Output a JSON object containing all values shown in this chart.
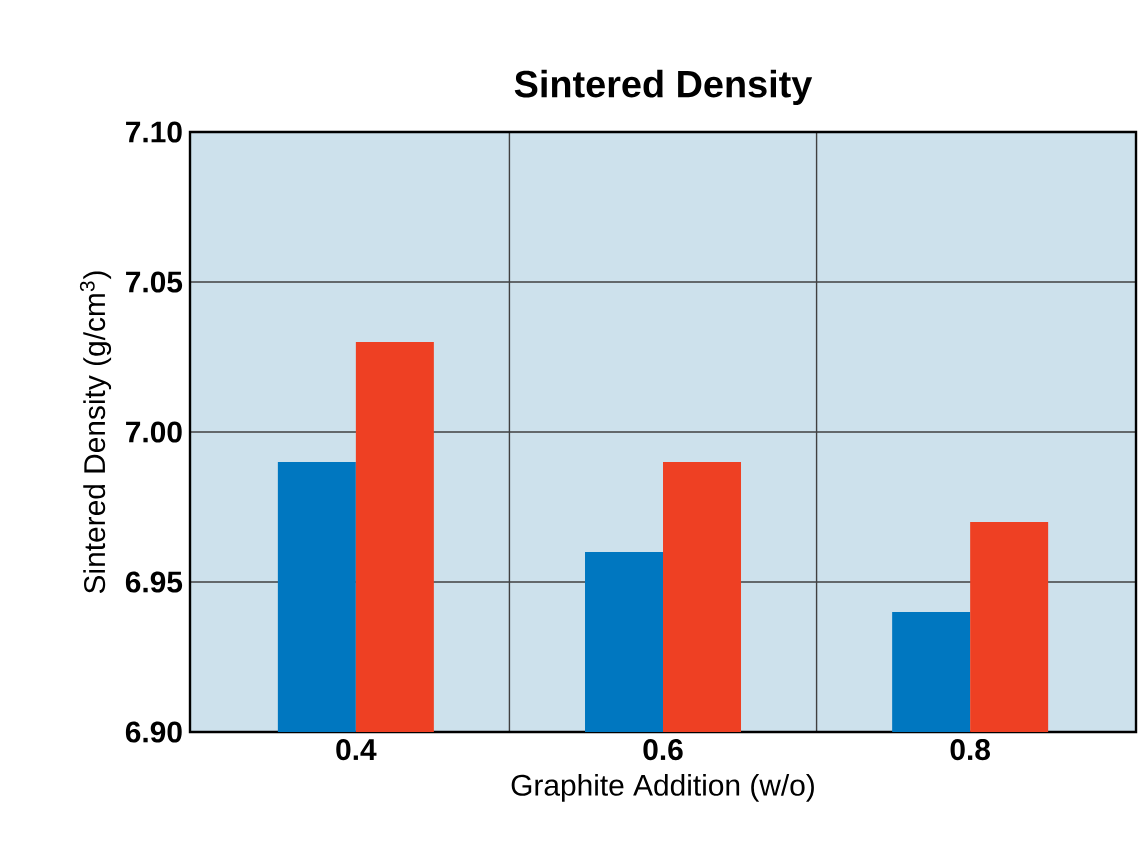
{
  "chart_data": {
    "type": "bar",
    "title": "Sintered Density",
    "xlabel": "Graphite Addition (w/o)",
    "ylabel": "Sintered Density (g/cm$^{3}$)",
    "categories": [
      "0.4",
      "0.6",
      "0.8"
    ],
    "series": [
      {
        "color": "#0077c0",
        "values": [
          6.99,
          6.96,
          6.94
        ]
      },
      {
        "color": "#ee4023",
        "values": [
          7.03,
          6.99,
          6.97
        ]
      }
    ],
    "ylim": [
      6.9,
      7.1
    ],
    "yticks": [
      {
        "value": 6.9,
        "label": "6.90"
      },
      {
        "value": 6.95,
        "label": "6.95"
      },
      {
        "value": 7.0,
        "label": "7.00"
      },
      {
        "value": 7.05,
        "label": "7.05"
      },
      {
        "value": 7.1,
        "label": "7.10"
      }
    ],
    "grid": true
  }
}
